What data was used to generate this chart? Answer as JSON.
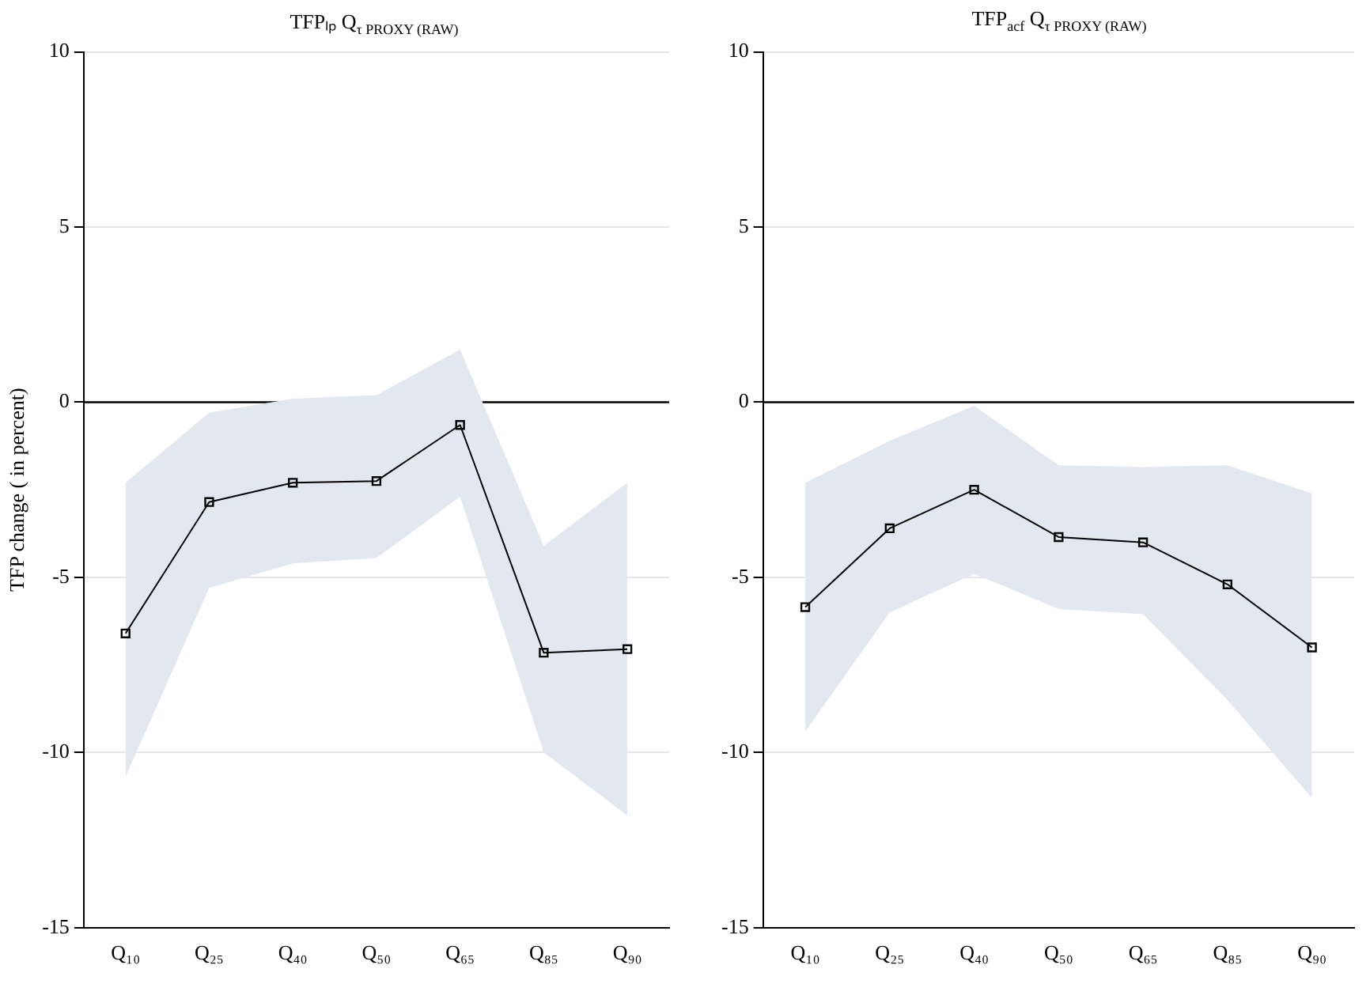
{
  "chart_data": [
    {
      "type": "line",
      "title": "TFPₗₚ Q$_{τ PROXY (RAW)}$",
      "ylabel": "TFP change ( in percent)",
      "categories": [
        "Q₁₀",
        "Q₂₅",
        "Q₄₀",
        "Q₅₀",
        "Q₆₅",
        "Q₈₅",
        "Q₉₀"
      ],
      "series": [
        {
          "color": "#000000",
          "values": [
            -6.6,
            -2.85,
            -2.3,
            -2.25,
            -0.65,
            -7.15,
            -7.05
          ],
          "lower": [
            -10.7,
            -5.3,
            -4.6,
            -4.45,
            -2.7,
            -10,
            -11.8
          ],
          "upper": [
            -2.3,
            -0.3,
            0.1,
            0.2,
            1.5,
            -4.1,
            -2.3
          ]
        }
      ],
      "ylim": [
        -15,
        10
      ],
      "yticks": [
        -15,
        -10,
        -5,
        0,
        5,
        10
      ],
      "grid": "y",
      "marker": "square",
      "ref_lines": [
        {
          "axis": "y",
          "value": 0,
          "color": "#000000"
        }
      ]
    },
    {
      "type": "line",
      "title": "TFP$_{acf}$ Q$_{τ PROXY (RAW)}$",
      "categories": [
        "Q₁₀",
        "Q₂₅",
        "Q₄₀",
        "Q₅₀",
        "Q₆₅",
        "Q₈₅",
        "Q₉₀"
      ],
      "series": [
        {
          "color": "#000000",
          "values": [
            -5.85,
            -3.6,
            -2.5,
            -3.85,
            -4.0,
            -5.2,
            -7.0
          ],
          "lower": [
            -9.4,
            -6.0,
            -4.9,
            -5.9,
            -6.05,
            -8.5,
            -11.3
          ],
          "upper": [
            -2.3,
            -1.1,
            -0.1,
            -1.8,
            -1.85,
            -1.8,
            -2.6
          ]
        }
      ],
      "ylim": [
        -15,
        10
      ],
      "yticks": [
        -15,
        -10,
        -5,
        0,
        5,
        10
      ],
      "grid": "y",
      "marker": "square",
      "ref_lines": [
        {
          "axis": "y",
          "value": 0,
          "color": "#000000"
        }
      ]
    }
  ]
}
